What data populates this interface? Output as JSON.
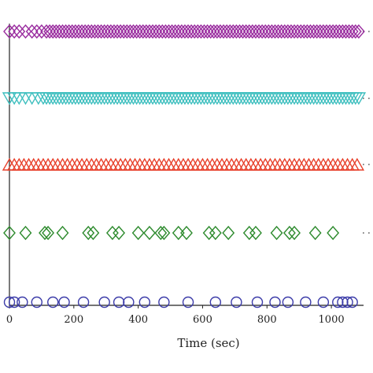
{
  "chart_data": {
    "type": "scatter",
    "xlabel": "Time (sec)",
    "xlim": [
      0,
      1100
    ],
    "xticks": [
      0,
      200,
      400,
      600,
      800,
      1000
    ],
    "grid": false,
    "series": [
      {
        "marker": "diamond",
        "color": "#9b2fa0",
        "x": [
          0,
          15,
          30,
          50,
          70,
          85,
          100,
          115,
          125,
          135,
          145,
          155,
          165,
          175,
          185,
          195,
          205,
          215,
          225,
          235,
          245,
          255,
          265,
          275,
          285,
          295,
          305,
          315,
          325,
          335,
          345,
          355,
          365,
          375,
          385,
          395,
          405,
          415,
          425,
          435,
          445,
          455,
          465,
          475,
          485,
          495,
          505,
          515,
          525,
          535,
          545,
          555,
          565,
          575,
          585,
          595,
          605,
          615,
          625,
          635,
          645,
          655,
          665,
          675,
          685,
          695,
          705,
          715,
          725,
          735,
          745,
          755,
          765,
          775,
          785,
          795,
          805,
          815,
          825,
          835,
          845,
          855,
          865,
          875,
          885,
          895,
          905,
          915,
          925,
          935,
          945,
          955,
          965,
          975,
          985,
          995,
          1005,
          1015,
          1025,
          1035,
          1045,
          1055,
          1065,
          1075,
          1085
        ]
      },
      {
        "marker": "triangle-down",
        "color": "#3fbfbf",
        "x": [
          0,
          15,
          30,
          50,
          70,
          90,
          105,
          115,
          125,
          135,
          145,
          155,
          165,
          175,
          185,
          195,
          205,
          215,
          225,
          235,
          245,
          255,
          265,
          275,
          285,
          295,
          305,
          315,
          325,
          335,
          345,
          355,
          365,
          375,
          385,
          395,
          405,
          415,
          425,
          435,
          445,
          455,
          465,
          475,
          485,
          495,
          505,
          515,
          525,
          535,
          545,
          555,
          565,
          575,
          585,
          595,
          605,
          615,
          625,
          635,
          645,
          655,
          665,
          675,
          685,
          695,
          705,
          715,
          725,
          735,
          745,
          755,
          765,
          775,
          785,
          795,
          805,
          815,
          825,
          835,
          845,
          855,
          865,
          875,
          885,
          895,
          905,
          915,
          925,
          935,
          945,
          955,
          965,
          975,
          985,
          995,
          1005,
          1015,
          1025,
          1035,
          1045,
          1055,
          1065,
          1075,
          1085
        ]
      },
      {
        "marker": "triangle-up",
        "color": "#e8412c",
        "x": [
          0,
          15,
          30,
          45,
          60,
          75,
          90,
          105,
          120,
          135,
          150,
          165,
          180,
          195,
          210,
          225,
          240,
          255,
          270,
          285,
          300,
          315,
          330,
          345,
          360,
          375,
          390,
          405,
          420,
          435,
          450,
          465,
          480,
          495,
          510,
          525,
          540,
          555,
          570,
          585,
          600,
          615,
          630,
          645,
          660,
          675,
          690,
          705,
          720,
          735,
          750,
          765,
          780,
          795,
          810,
          825,
          840,
          855,
          870,
          885,
          900,
          915,
          930,
          945,
          960,
          975,
          990,
          1005,
          1020,
          1035,
          1050,
          1065,
          1080
        ]
      },
      {
        "marker": "diamond",
        "color": "#2e8b2e",
        "x": [
          0,
          50,
          110,
          120,
          165,
          245,
          260,
          320,
          340,
          400,
          435,
          470,
          480,
          525,
          550,
          620,
          640,
          680,
          745,
          765,
          830,
          870,
          885,
          950,
          1005
        ]
      },
      {
        "marker": "circle",
        "color": "#3b3ba8",
        "x": [
          0,
          15,
          40,
          85,
          135,
          170,
          230,
          295,
          340,
          370,
          420,
          480,
          555,
          640,
          705,
          770,
          825,
          865,
          920,
          975,
          1020,
          1035,
          1050,
          1065
        ]
      }
    ]
  }
}
